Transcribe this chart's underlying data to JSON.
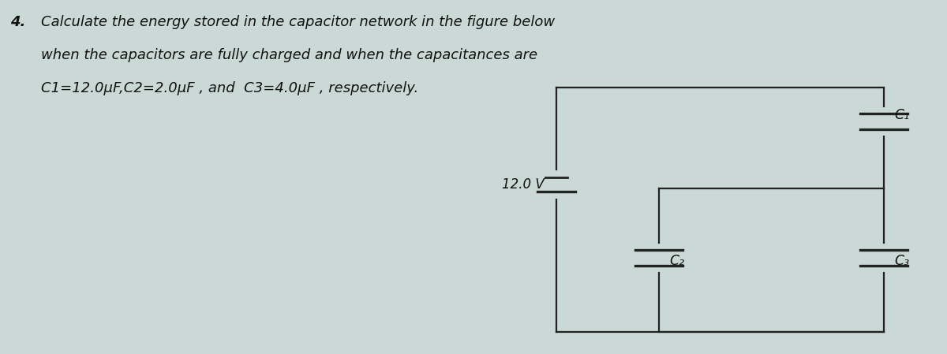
{
  "background_color": "#cad9d5",
  "title_number": "4.",
  "title_line1": "Calculate the energy stored in the capacitor network in the figure below",
  "title_line2": "when the capacitors are fully charged and when the capacitances are",
  "title_line3": "C1=12.0μF,C2=2.0μF , and  C3=4.0μF , respectively.",
  "voltage_label": "12.0 V",
  "c1_label": "C₁",
  "c2_label": "C₂",
  "c3_label": "C₃",
  "text_color": "#111111",
  "circuit_color": "#222222",
  "title_fontsize": 13.0,
  "label_fontsize": 12.5,
  "lw": 1.6
}
